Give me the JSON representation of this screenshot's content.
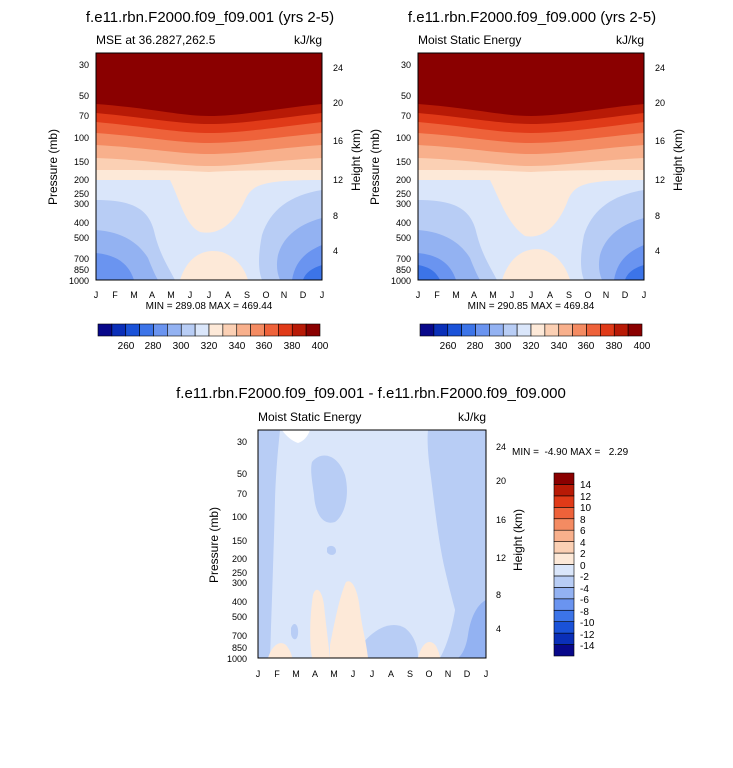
{
  "colors": {
    "mse_palette": [
      "#08088a",
      "#0a2fb8",
      "#1a52d8",
      "#3c74e8",
      "#6a94f0",
      "#93b2f2",
      "#b8cdf5",
      "#dae6fa",
      "#fde9d8",
      "#fbd0b4",
      "#f8b08c",
      "#f48b62",
      "#ee623a",
      "#e03a18",
      "#b81a06",
      "#8a0000"
    ],
    "diff_palette": [
      "#08088a",
      "#0a2fb8",
      "#1a52d8",
      "#3c74e8",
      "#6a94f0",
      "#93b2f2",
      "#b8cdf5",
      "#dae6fa",
      "#fde9d8",
      "#fbd0b4",
      "#f8b08c",
      "#f48b62",
      "#ee623a",
      "#e03a18",
      "#b81a06",
      "#8a0000"
    ]
  },
  "chart_data": [
    {
      "type": "heatmap",
      "title": "f.e11.rbn.F2000.f09_f09.001 (yrs 2-5)",
      "left_label": "MSE at 36.2827,262.5",
      "right_label": "kJ/kg",
      "ylabel": "Pressure (mb)",
      "ylabel_right": "Height (km)",
      "x_ticks": [
        "J",
        "F",
        "M",
        "A",
        "M",
        "J",
        "J",
        "A",
        "S",
        "O",
        "N",
        "D",
        "J"
      ],
      "y_ticks": [
        30,
        50,
        70,
        100,
        150,
        200,
        250,
        300,
        400,
        500,
        700,
        850,
        1000
      ],
      "y_ticks_right": [
        24,
        20,
        16,
        12,
        8,
        4
      ],
      "ylim": [
        1000,
        24
      ],
      "stats": "MIN = 289.08 MAX = 469.44",
      "colorbar_labels": [
        "260",
        "280",
        "300",
        "320",
        "340",
        "360",
        "380",
        "400"
      ],
      "levels": [
        260,
        270,
        280,
        290,
        300,
        310,
        320,
        330,
        340,
        350,
        360,
        370,
        380,
        390,
        400
      ]
    },
    {
      "type": "heatmap",
      "title": "f.e11.rbn.F2000.f09_f09.000 (yrs 2-5)",
      "left_label": "Moist Static Energy",
      "right_label": "kJ/kg",
      "ylabel": "Pressure (mb)",
      "ylabel_right": "Height (km)",
      "x_ticks": [
        "J",
        "F",
        "M",
        "A",
        "M",
        "J",
        "J",
        "A",
        "S",
        "O",
        "N",
        "D",
        "J"
      ],
      "y_ticks": [
        30,
        50,
        70,
        100,
        150,
        200,
        250,
        300,
        400,
        500,
        700,
        850,
        1000
      ],
      "y_ticks_right": [
        24,
        20,
        16,
        12,
        8,
        4
      ],
      "ylim": [
        1000,
        24
      ],
      "stats": "MIN = 290.85 MAX = 469.84",
      "colorbar_labels": [
        "260",
        "280",
        "300",
        "320",
        "340",
        "360",
        "380",
        "400"
      ],
      "levels": [
        260,
        270,
        280,
        290,
        300,
        310,
        320,
        330,
        340,
        350,
        360,
        370,
        380,
        390,
        400
      ]
    },
    {
      "type": "heatmap",
      "title": "f.e11.rbn.F2000.f09_f09.001 - f.e11.rbn.F2000.f09_f09.000",
      "left_label": "Moist Static Energy",
      "right_label": "kJ/kg",
      "ylabel": "Pressure (mb)",
      "ylabel_right": "Height (km)",
      "x_ticks": [
        "J",
        "F",
        "M",
        "A",
        "M",
        "J",
        "J",
        "A",
        "S",
        "O",
        "N",
        "D",
        "J"
      ],
      "y_ticks": [
        30,
        50,
        70,
        100,
        150,
        200,
        250,
        300,
        400,
        500,
        700,
        850,
        1000
      ],
      "y_ticks_right": [
        24,
        20,
        16,
        12,
        8,
        4
      ],
      "ylim": [
        1000,
        24
      ],
      "stats": "MIN =  -4.90 MAX =   2.29",
      "colorbar_labels": [
        "14",
        "12",
        "10",
        "8",
        "6",
        "4",
        "2",
        "0",
        "-2",
        "-4",
        "-6",
        "-8",
        "-10",
        "-12",
        "-14"
      ],
      "levels": [
        -14,
        -12,
        -10,
        -8,
        -6,
        -4,
        -2,
        0,
        2,
        4,
        6,
        8,
        10,
        12,
        14
      ]
    }
  ]
}
